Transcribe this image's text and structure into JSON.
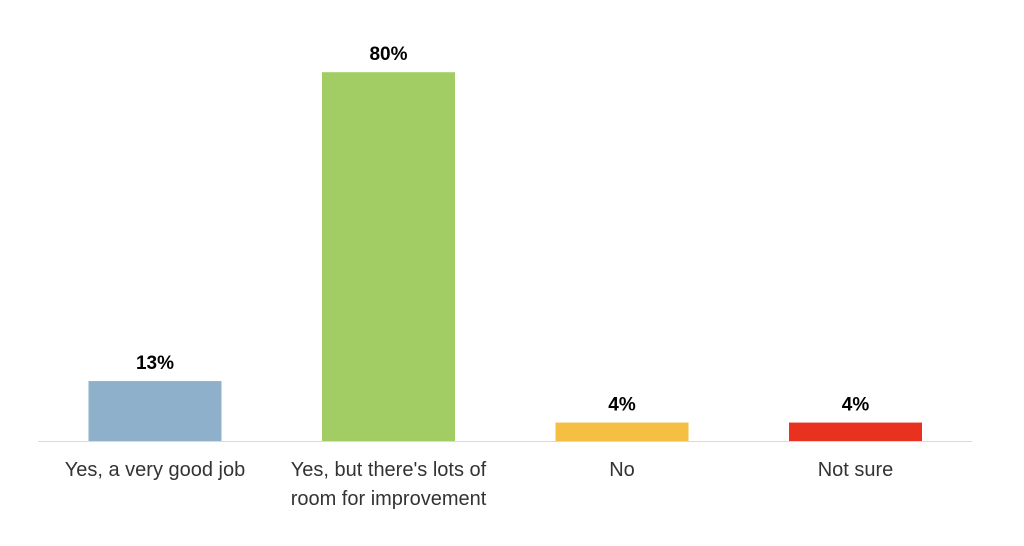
{
  "chart_data": {
    "type": "bar",
    "categories": [
      "Yes, a very good job",
      "Yes, but there's lots of room for improvement",
      "No",
      "Not sure"
    ],
    "values": [
      13,
      80,
      4,
      4
    ],
    "value_labels": [
      "13%",
      "80%",
      "4%",
      "4%"
    ],
    "colors": [
      "#8eb0ca",
      "#a2cd64",
      "#f5bf44",
      "#e8321f"
    ]
  }
}
